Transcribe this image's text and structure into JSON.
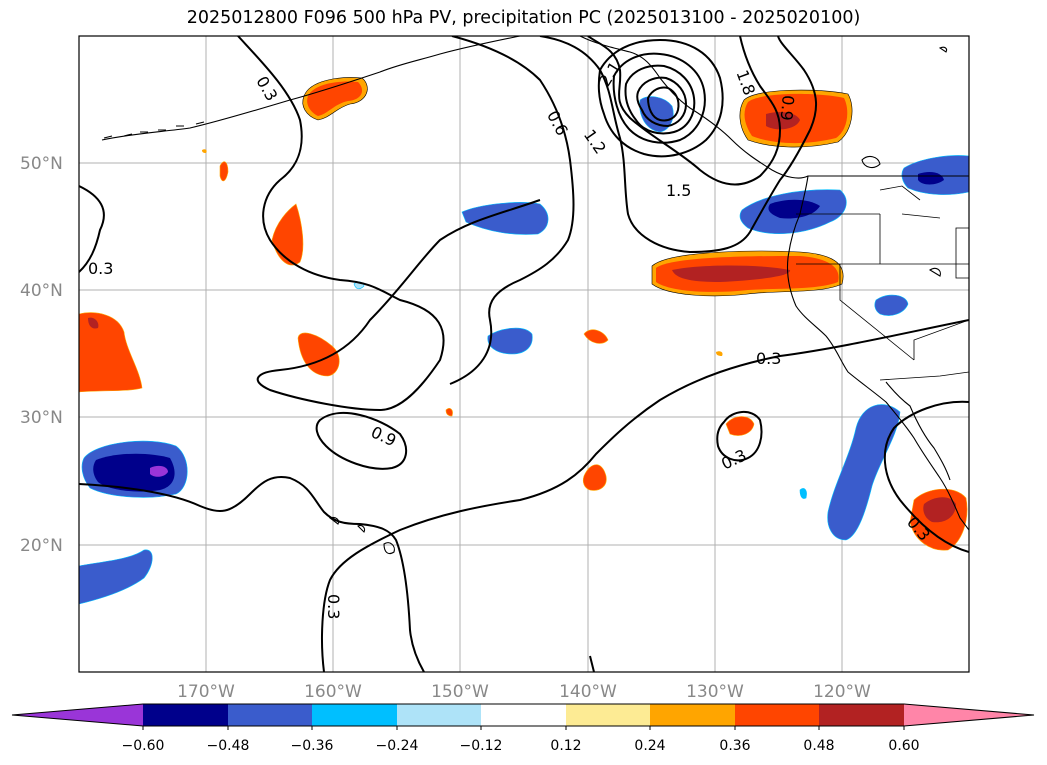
{
  "title": "2025012800 F096 500 hPa PV, precipitation PC (2025013100 - 2025020100)",
  "lat_labels": [
    "50°N",
    "40°N",
    "30°N",
    "20°N"
  ],
  "lon_labels": [
    "170°W",
    "160°W",
    "150°W",
    "140°W",
    "130°W",
    "120°W"
  ],
  "contour_labels": [
    "0.3",
    "0.3",
    "0.6",
    "1.2",
    "2.1",
    "1.8",
    "0.9",
    "1.5",
    "0.3",
    "0.9",
    "0.3",
    "0.3",
    "0.3"
  ],
  "colorbar": {
    "ticks": [
      "−0.60",
      "−0.48",
      "−0.36",
      "−0.24",
      "−0.12",
      "0.12",
      "0.24",
      "0.36",
      "0.48",
      "0.60"
    ],
    "colors": [
      "#9a35d8",
      "#00008b",
      "#3a5ccc",
      "#00bfff",
      "#aee3f8",
      "#ffffff",
      "#fdeb94",
      "#ffa500",
      "#ff4500",
      "#b22222",
      "#ff85a8"
    ]
  }
}
